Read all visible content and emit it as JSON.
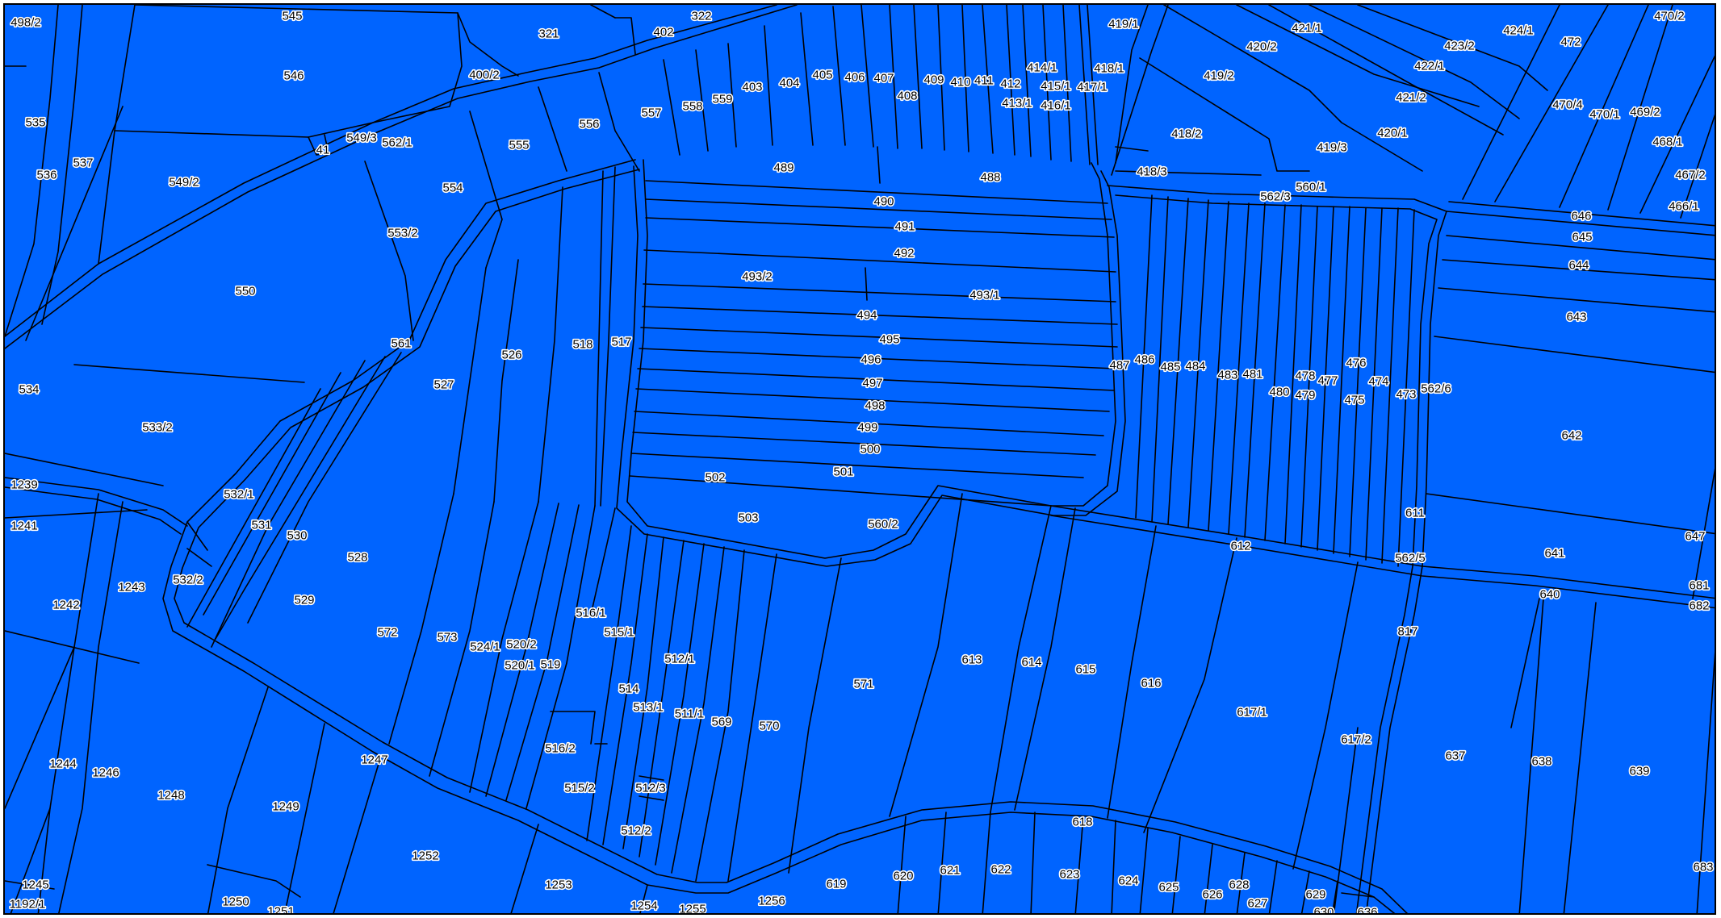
{
  "map": {
    "fill_color": "#0064ff",
    "line_color": "#000000",
    "label_color": "#000000",
    "label_halo": "#ffffff",
    "labels": [
      "498/2",
      "545",
      "321",
      "322",
      "402",
      "419/1",
      "421/1",
      "424/1",
      "472",
      "470/2",
      "546",
      "400/2",
      "420/2",
      "423/2",
      "422/1",
      "535",
      "558",
      "557",
      "559",
      "403",
      "404",
      "405",
      "406",
      "407",
      "409",
      "410",
      "411",
      "412",
      "414/1",
      "415/1",
      "417/1",
      "418/1",
      "419/2",
      "421/2",
      "408",
      "413/1",
      "416/1",
      "470/4",
      "470/1",
      "469/2",
      "537",
      "536",
      "41",
      "549/3",
      "562/1",
      "555",
      "556",
      "420/1",
      "468/1",
      "418/2",
      "419/3",
      "549/2",
      "554",
      "489",
      "488",
      "418/3",
      "467/2",
      "560/1",
      "562/3",
      "466/1",
      "490",
      "646",
      "645",
      "491",
      "553/2",
      "492",
      "644",
      "550",
      "493/2",
      "493/1",
      "494",
      "643",
      "561",
      "495",
      "526",
      "518",
      "517",
      "496",
      "487",
      "486",
      "485",
      "484",
      "483",
      "481",
      "478",
      "477",
      "476",
      "474",
      "534",
      "527",
      "497",
      "562/6",
      "480",
      "479",
      "475",
      "473",
      "498",
      "533/2",
      "499",
      "642",
      "500",
      "501",
      "502",
      "1239",
      "532/1",
      "611",
      "1241",
      "531",
      "530",
      "503",
      "560/2",
      "612",
      "647",
      "528",
      "641",
      "562/5",
      "1243",
      "532/2",
      "681",
      "1242",
      "516/1",
      "640",
      "682",
      "529",
      "515/1",
      "572",
      "573",
      "524/1",
      "520/2",
      "817",
      "519",
      "512/1",
      "520/1",
      "613",
      "614",
      "615",
      "616",
      "571",
      "514",
      "513/1",
      "617/1",
      "511/1",
      "569",
      "570",
      "617/2",
      "516/2",
      "637",
      "1244",
      "1247",
      "638",
      "1246",
      "639",
      "1248",
      "515/2",
      "512/3",
      "1249",
      "618",
      "512/2",
      "1252",
      "683",
      "619",
      "620",
      "621",
      "622",
      "623",
      "624",
      "625",
      "626",
      "628",
      "627",
      "629",
      "1253",
      "1245",
      "1250",
      "1254",
      "1255",
      "1256",
      "1192/1",
      "1251",
      "630",
      "636"
    ]
  }
}
